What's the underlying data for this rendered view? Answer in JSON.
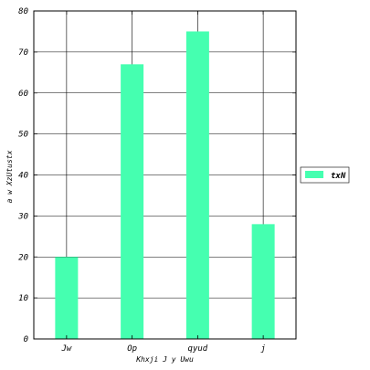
{
  "chart_data": {
    "type": "bar",
    "categories": [
      "Jw",
      "Op",
      "qyud",
      "j"
    ],
    "series": [
      {
        "name": "txN",
        "values": [
          20,
          67,
          75,
          28
        ],
        "color": "#45ffb0"
      }
    ],
    "xlabel": "Khxji J y Uwu",
    "ylabel": "a w XzUtustx",
    "ylim": [
      0,
      80
    ],
    "yticks": [
      0,
      10,
      20,
      30,
      40,
      50,
      60,
      70,
      80
    ],
    "grid": true,
    "legend_position": "right"
  }
}
